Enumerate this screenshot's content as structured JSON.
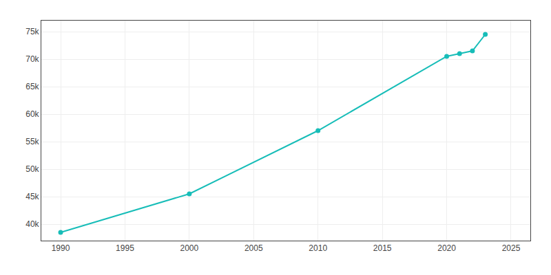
{
  "chart_data": {
    "type": "line",
    "x": [
      1990,
      2000,
      2010,
      2020,
      2021,
      2022,
      2023
    ],
    "values": [
      38500,
      45500,
      57000,
      70500,
      71000,
      71500,
      74500
    ],
    "color": "#17BDB8",
    "marker": "circle",
    "xlim": [
      1988.5,
      2026.5
    ],
    "ylim": [
      37000,
      77000
    ],
    "xticks": [
      1990,
      1995,
      2000,
      2005,
      2010,
      2015,
      2020,
      2025
    ],
    "yticks": [
      {
        "value": 40000,
        "label": "40k"
      },
      {
        "value": 45000,
        "label": "45k"
      },
      {
        "value": 50000,
        "label": "50k"
      },
      {
        "value": 55000,
        "label": "55k"
      },
      {
        "value": 60000,
        "label": "60k"
      },
      {
        "value": 65000,
        "label": "65k"
      },
      {
        "value": 70000,
        "label": "70k"
      },
      {
        "value": 75000,
        "label": "75k"
      }
    ],
    "grid": true
  }
}
